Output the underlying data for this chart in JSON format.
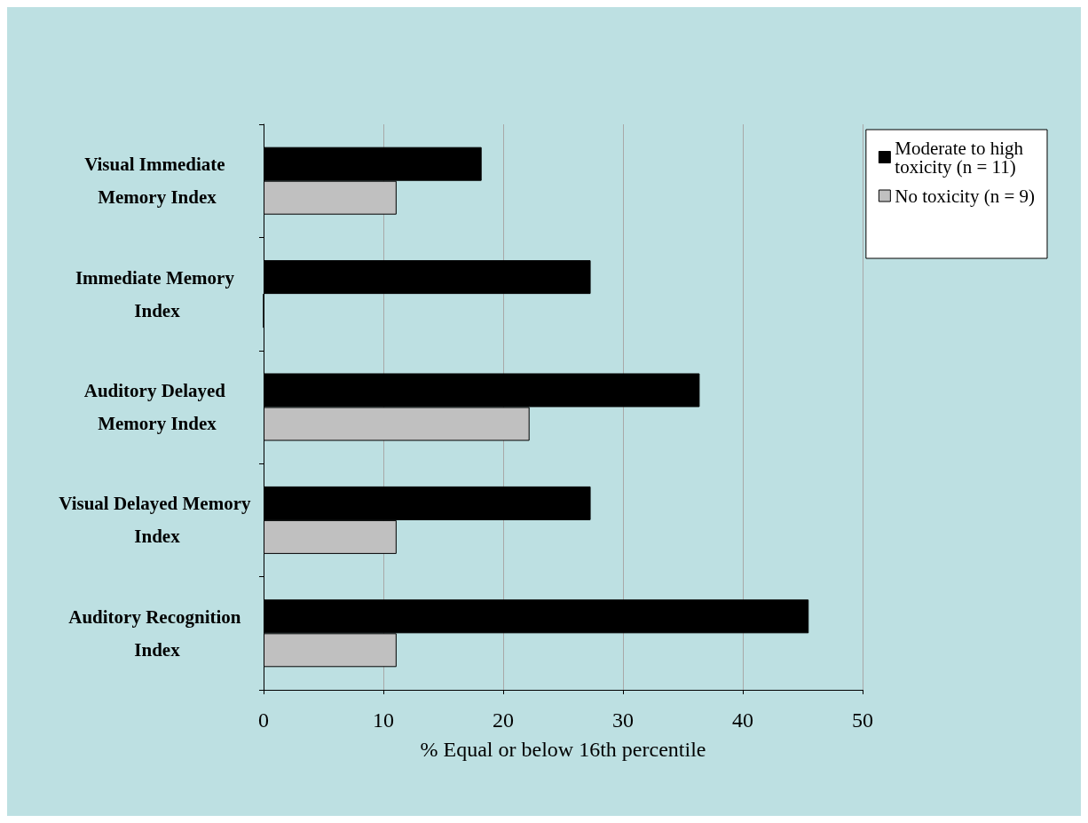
{
  "chart_data": {
    "type": "bar",
    "orientation": "horizontal",
    "xlabel": "% Equal or below 16th percentile",
    "categories": [
      "Visual Immediate Memory Index",
      "Immediate Memory Index",
      "Auditory Delayed Memory Index",
      "Visual Delayed Memory Index",
      "Auditory Recognition Index"
    ],
    "series": [
      {
        "name": "Moderate to high toxicity (n = 11)",
        "color": "#000000",
        "values": [
          18.2,
          27.3,
          36.4,
          27.3,
          45.5
        ]
      },
      {
        "name": "No toxicity (n = 9)",
        "color": "#c0c0c0",
        "values": [
          11.1,
          0,
          22.2,
          11.1,
          11.1
        ]
      }
    ],
    "xlim": [
      0,
      50
    ],
    "xticks": [
      0,
      10,
      20,
      30,
      40,
      50
    ],
    "grid": "x",
    "legend": "top right"
  }
}
